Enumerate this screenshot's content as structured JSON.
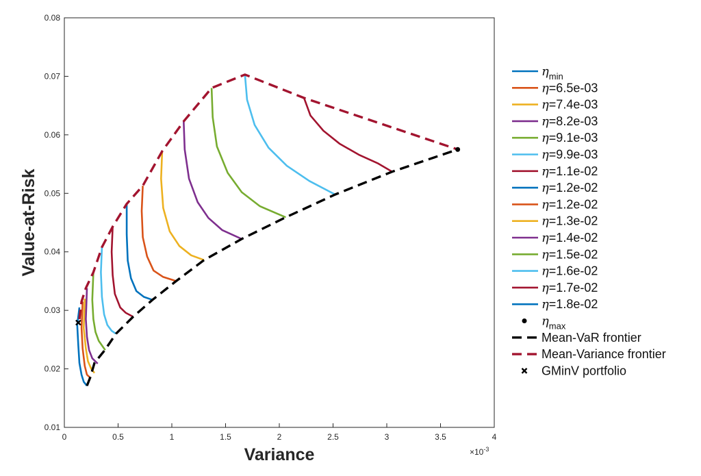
{
  "chart_data": {
    "type": "line",
    "xlabel": "Variance",
    "ylabel": "Value-at-Risk",
    "x_exponent_label": "×10",
    "x_exponent_power": "-3",
    "xlim": [
      0,
      0.004
    ],
    "ylim": [
      0.01,
      0.08
    ],
    "x_tick_labels": [
      "0",
      "0.5",
      "1",
      "1.5",
      "2",
      "2.5",
      "3",
      "3.5",
      "4"
    ],
    "x_tick_values": [
      0,
      0.0005,
      0.001,
      0.0015,
      0.002,
      0.0025,
      0.003,
      0.0035,
      0.004
    ],
    "y_tick_labels": [
      "0.01",
      "0.02",
      "0.03",
      "0.04",
      "0.05",
      "0.06",
      "0.07",
      "0.08"
    ],
    "y_tick_values": [
      0.01,
      0.02,
      0.03,
      0.04,
      0.05,
      0.06,
      0.07,
      0.08
    ],
    "grid": false,
    "legend_position": "outside-right",
    "series": [
      {
        "name": "η_min",
        "color": "#0072BD",
        "style": "solid",
        "points": [
          [
            0.00014,
            0.0305
          ],
          [
            0.00012,
            0.0275
          ],
          [
            0.00013,
            0.024
          ],
          [
            0.00014,
            0.021
          ],
          [
            0.00016,
            0.019
          ],
          [
            0.00018,
            0.0178
          ],
          [
            0.00021,
            0.0171
          ]
        ]
      },
      {
        "name": "η=6.5e-03",
        "color": "#D95319",
        "style": "solid",
        "points": [
          [
            0.00017,
            0.0315
          ],
          [
            0.00016,
            0.027
          ],
          [
            0.00017,
            0.0235
          ],
          [
            0.00019,
            0.0205
          ],
          [
            0.00021,
            0.019
          ],
          [
            0.00024,
            0.0185
          ]
        ]
      },
      {
        "name": "η=7.4e-03",
        "color": "#EDB120",
        "style": "solid",
        "points": [
          [
            0.00019,
            0.032
          ],
          [
            0.00018,
            0.027
          ],
          [
            0.0002,
            0.0235
          ],
          [
            0.00022,
            0.0213
          ],
          [
            0.00025,
            0.02
          ],
          [
            0.00028,
            0.0193
          ]
        ]
      },
      {
        "name": "η=8.2e-03",
        "color": "#7E2F8E",
        "style": "solid",
        "points": [
          [
            0.00021,
            0.0338
          ],
          [
            0.0002,
            0.0285
          ],
          [
            0.00021,
            0.0255
          ],
          [
            0.00023,
            0.0232
          ],
          [
            0.00026,
            0.0218
          ],
          [
            0.00031,
            0.0209
          ]
        ]
      },
      {
        "name": "η=9.1e-03",
        "color": "#77AC30",
        "style": "solid",
        "points": [
          [
            0.00027,
            0.0365
          ],
          [
            0.00026,
            0.0318
          ],
          [
            0.00027,
            0.0285
          ],
          [
            0.00029,
            0.0263
          ],
          [
            0.00032,
            0.0248
          ],
          [
            0.00038,
            0.0232
          ]
        ]
      },
      {
        "name": "η=9.9e-03",
        "color": "#4DBEEE",
        "style": "solid",
        "points": [
          [
            0.00035,
            0.0408
          ],
          [
            0.00034,
            0.0365
          ],
          [
            0.00035,
            0.0323
          ],
          [
            0.00037,
            0.0293
          ],
          [
            0.0004,
            0.0275
          ],
          [
            0.00044,
            0.0265
          ],
          [
            0.00048,
            0.026
          ]
        ]
      },
      {
        "name": "η=1.1e-02",
        "color": "#A2142F",
        "style": "solid",
        "points": [
          [
            0.00045,
            0.0443
          ],
          [
            0.00044,
            0.04
          ],
          [
            0.00045,
            0.036
          ],
          [
            0.00047,
            0.0328
          ],
          [
            0.00052,
            0.0305
          ],
          [
            0.00057,
            0.0296
          ],
          [
            0.00064,
            0.0289
          ]
        ]
      },
      {
        "name": "η=1.2e-02",
        "color": "#0072BD",
        "style": "solid",
        "points": [
          [
            0.00058,
            0.0482
          ],
          [
            0.00058,
            0.043
          ],
          [
            0.00059,
            0.0385
          ],
          [
            0.00062,
            0.0355
          ],
          [
            0.00067,
            0.0333
          ],
          [
            0.00074,
            0.0323
          ],
          [
            0.00082,
            0.0318
          ]
        ]
      },
      {
        "name": "η=1.2e-02",
        "color": "#D95319",
        "style": "solid",
        "points": [
          [
            0.00073,
            0.0513
          ],
          [
            0.00072,
            0.047
          ],
          [
            0.00073,
            0.0425
          ],
          [
            0.00077,
            0.0392
          ],
          [
            0.00083,
            0.0368
          ],
          [
            0.00092,
            0.0357
          ],
          [
            0.00104,
            0.035
          ]
        ]
      },
      {
        "name": "η=1.3e-02",
        "color": "#EDB120",
        "style": "solid",
        "points": [
          [
            0.00091,
            0.0572
          ],
          [
            0.0009,
            0.0525
          ],
          [
            0.00092,
            0.0475
          ],
          [
            0.00098,
            0.0435
          ],
          [
            0.00107,
            0.041
          ],
          [
            0.00118,
            0.0394
          ],
          [
            0.0013,
            0.0386
          ]
        ]
      },
      {
        "name": "η=1.4e-02",
        "color": "#7E2F8E",
        "style": "solid",
        "points": [
          [
            0.00111,
            0.0623
          ],
          [
            0.00112,
            0.0575
          ],
          [
            0.00116,
            0.0525
          ],
          [
            0.00124,
            0.0485
          ],
          [
            0.00134,
            0.0458
          ],
          [
            0.00147,
            0.0437
          ],
          [
            0.00165,
            0.0422
          ]
        ]
      },
      {
        "name": "η=1.5e-02",
        "color": "#77AC30",
        "style": "solid",
        "points": [
          [
            0.00137,
            0.068
          ],
          [
            0.00138,
            0.063
          ],
          [
            0.00142,
            0.058
          ],
          [
            0.00152,
            0.0535
          ],
          [
            0.00165,
            0.0502
          ],
          [
            0.00182,
            0.0478
          ],
          [
            0.00206,
            0.0459
          ]
        ]
      },
      {
        "name": "η=1.6e-02",
        "color": "#4DBEEE",
        "style": "solid",
        "points": [
          [
            0.00168,
            0.0703
          ],
          [
            0.0017,
            0.066
          ],
          [
            0.00177,
            0.0617
          ],
          [
            0.0019,
            0.0578
          ],
          [
            0.00207,
            0.0547
          ],
          [
            0.00228,
            0.0521
          ],
          [
            0.00252,
            0.0498
          ]
        ]
      },
      {
        "name": "η=1.7e-02",
        "color": "#A2142F",
        "style": "solid",
        "points": [
          [
            0.00223,
            0.0663
          ],
          [
            0.00229,
            0.0633
          ],
          [
            0.00241,
            0.0607
          ],
          [
            0.00256,
            0.0585
          ],
          [
            0.00274,
            0.0566
          ],
          [
            0.00292,
            0.0551
          ],
          [
            0.00305,
            0.0537
          ]
        ]
      },
      {
        "name": "η=1.8e-02",
        "color": "#0072BD",
        "style": "solid",
        "points": []
      },
      {
        "name": "η_max",
        "color": "#000000",
        "style": "marker-dot",
        "points": [
          [
            0.00366,
            0.0575
          ]
        ]
      },
      {
        "name": "Mean-VaR frontier",
        "color": "#000000",
        "style": "dashed",
        "points": [
          [
            0.00021,
            0.0171
          ],
          [
            0.00024,
            0.0185
          ],
          [
            0.00028,
            0.021
          ],
          [
            0.00038,
            0.0233
          ],
          [
            0.00048,
            0.026
          ],
          [
            0.00064,
            0.0289
          ],
          [
            0.00082,
            0.0318
          ],
          [
            0.00104,
            0.035
          ],
          [
            0.0013,
            0.0386
          ],
          [
            0.00165,
            0.0422
          ],
          [
            0.00206,
            0.0459
          ],
          [
            0.00252,
            0.0498
          ],
          [
            0.00305,
            0.0537
          ],
          [
            0.00366,
            0.0575
          ]
        ]
      },
      {
        "name": "Mean-Variance frontier",
        "color": "#A2142F",
        "style": "dashed",
        "points": [
          [
            0.00014,
            0.0285
          ],
          [
            0.00016,
            0.0315
          ],
          [
            0.0002,
            0.0338
          ],
          [
            0.00027,
            0.0365
          ],
          [
            0.00035,
            0.0408
          ],
          [
            0.00045,
            0.0443
          ],
          [
            0.00058,
            0.0482
          ],
          [
            0.00073,
            0.0513
          ],
          [
            0.00091,
            0.0572
          ],
          [
            0.00111,
            0.0623
          ],
          [
            0.00137,
            0.068
          ],
          [
            0.00168,
            0.0703
          ],
          [
            0.00223,
            0.0663
          ],
          [
            0.00366,
            0.0575
          ]
        ]
      },
      {
        "name": "GMinV portfolio",
        "color": "#000000",
        "style": "marker-x",
        "points": [
          [
            0.00013,
            0.0279
          ]
        ]
      }
    ]
  },
  "legend": {
    "eta_symbol": "η",
    "min_sub": "min",
    "max_sub": "max",
    "entries": [
      {
        "label": "min",
        "kind": "eta-sub",
        "color": "#0072BD",
        "style": "solid"
      },
      {
        "label": "=6.5e-03",
        "kind": "eta",
        "color": "#D95319",
        "style": "solid"
      },
      {
        "label": "=7.4e-03",
        "kind": "eta",
        "color": "#EDB120",
        "style": "solid"
      },
      {
        "label": "=8.2e-03",
        "kind": "eta",
        "color": "#7E2F8E",
        "style": "solid"
      },
      {
        "label": "=9.1e-03",
        "kind": "eta",
        "color": "#77AC30",
        "style": "solid"
      },
      {
        "label": "=9.9e-03",
        "kind": "eta",
        "color": "#4DBEEE",
        "style": "solid"
      },
      {
        "label": "=1.1e-02",
        "kind": "eta",
        "color": "#A2142F",
        "style": "solid"
      },
      {
        "label": "=1.2e-02",
        "kind": "eta",
        "color": "#0072BD",
        "style": "solid"
      },
      {
        "label": "=1.2e-02",
        "kind": "eta",
        "color": "#D95319",
        "style": "solid"
      },
      {
        "label": "=1.3e-02",
        "kind": "eta",
        "color": "#EDB120",
        "style": "solid"
      },
      {
        "label": "=1.4e-02",
        "kind": "eta",
        "color": "#7E2F8E",
        "style": "solid"
      },
      {
        "label": "=1.5e-02",
        "kind": "eta",
        "color": "#77AC30",
        "style": "solid"
      },
      {
        "label": "=1.6e-02",
        "kind": "eta",
        "color": "#4DBEEE",
        "style": "solid"
      },
      {
        "label": "=1.7e-02",
        "kind": "eta",
        "color": "#A2142F",
        "style": "solid"
      },
      {
        "label": "=1.8e-02",
        "kind": "eta",
        "color": "#0072BD",
        "style": "solid"
      },
      {
        "label": "max",
        "kind": "eta-sub",
        "color": "#000000",
        "style": "marker-dot"
      },
      {
        "label": "Mean-VaR frontier",
        "kind": "text",
        "color": "#000000",
        "style": "dashed"
      },
      {
        "label": "Mean-Variance frontier",
        "kind": "text",
        "color": "#A2142F",
        "style": "dashed"
      },
      {
        "label": "GMinV portfolio",
        "kind": "text",
        "color": "#000000",
        "style": "marker-x"
      }
    ]
  }
}
